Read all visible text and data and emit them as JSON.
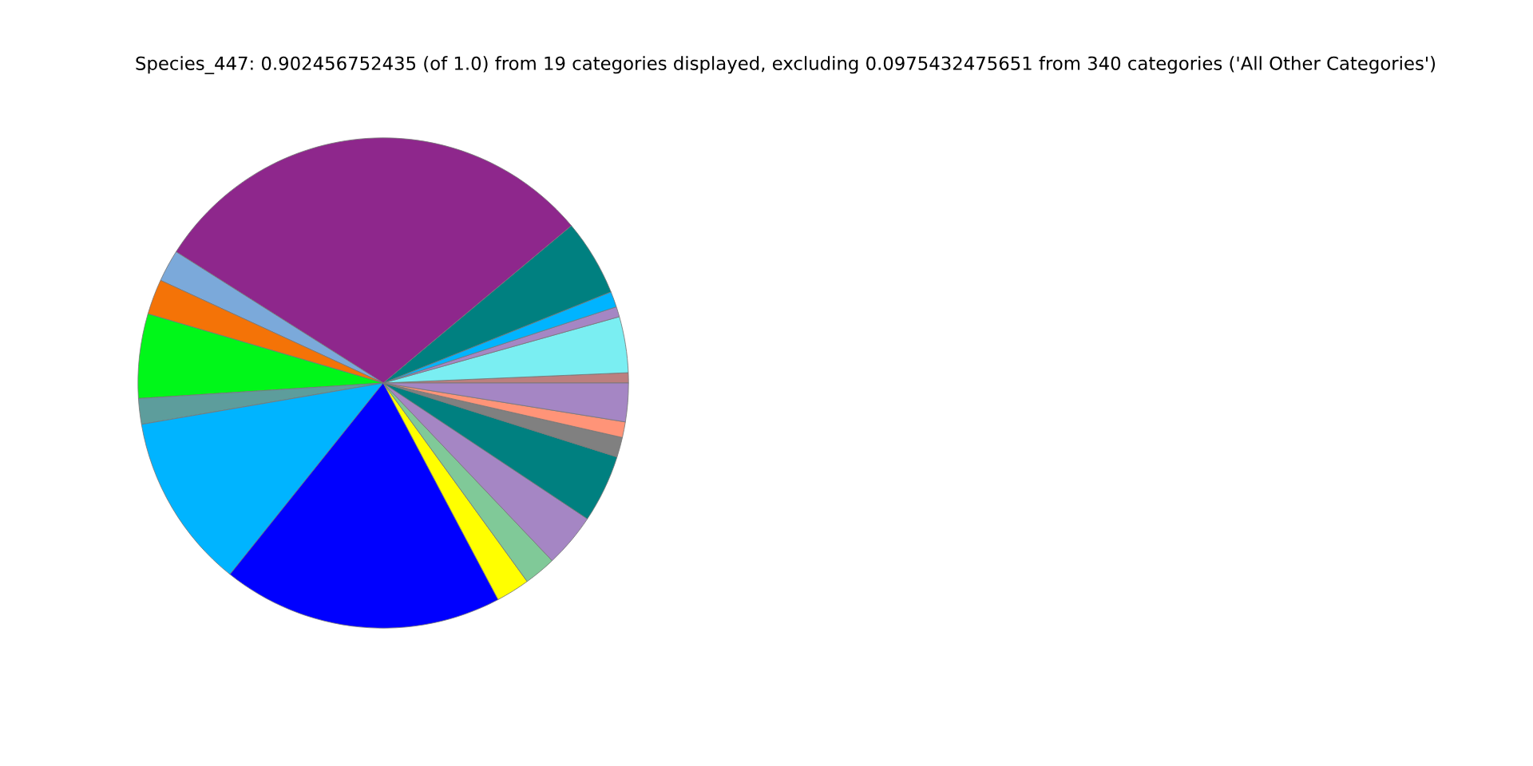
{
  "chart_data": {
    "type": "pie",
    "title": "Species_447: 0.902456752435 (of 1.0) from 19 categories displayed, excluding 0.0975432475651 from 340 categories ('All Other Categories')",
    "categories": [
      null,
      null,
      null,
      null,
      null,
      null,
      null,
      null,
      null,
      null,
      null,
      null,
      null,
      null,
      null,
      null,
      null,
      null,
      null
    ],
    "values": [
      0.67,
      3.69,
      0.67,
      1.03,
      5.03,
      29.92,
      2.11,
      2.33,
      5.56,
      1.69,
      11.56,
      18.5,
      2.22,
      2.11,
      3.56,
      4.47,
      1.31,
      1.03,
      2.54
    ],
    "colors": [
      "#bc7f7f",
      "#7aeef2",
      "#a586c4",
      "#00b4ff",
      "#008080",
      "#8e278c",
      "#7ba9da",
      "#f47307",
      "#00f719",
      "#5d9d9c",
      "#00b4ff",
      "#0000ff",
      "#ffff00",
      "#80c998",
      "#a586c4",
      "#008080",
      "#808080",
      "#ff9478",
      "#a586c4"
    ],
    "legend": false
  }
}
